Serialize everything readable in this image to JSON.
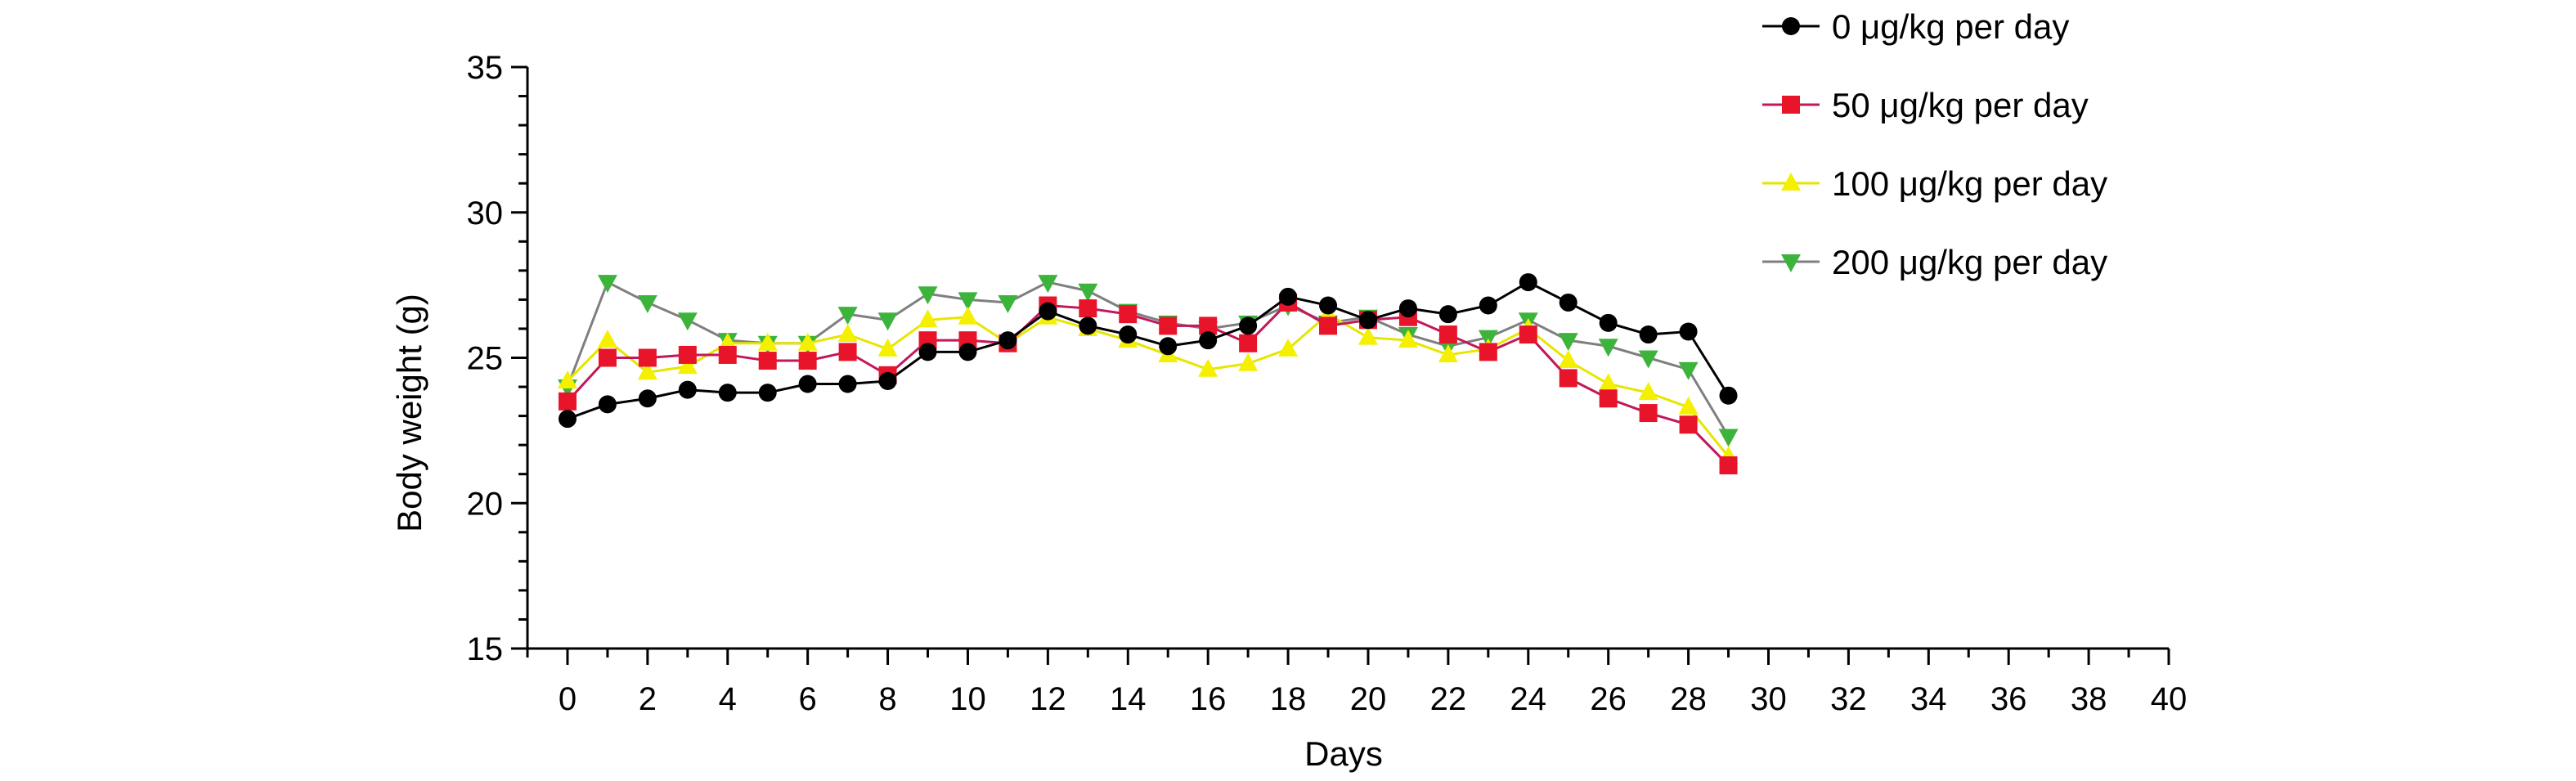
{
  "chart_data": {
    "type": "line",
    "title": "",
    "xlabel": "Days",
    "ylabel": "Body weight (g)",
    "xlim": [
      -1,
      40
    ],
    "ylim": [
      15,
      35
    ],
    "x_ticks": [
      0,
      2,
      4,
      6,
      8,
      10,
      12,
      14,
      16,
      18,
      20,
      22,
      24,
      26,
      28,
      30,
      32,
      34,
      36,
      38,
      40
    ],
    "y_ticks": [
      15,
      20,
      25,
      30,
      35
    ],
    "grid": false,
    "legend_position": "top-right",
    "x": [
      0,
      1,
      2,
      3,
      4,
      5,
      6,
      7,
      8,
      9,
      10,
      11,
      12,
      13,
      14,
      15,
      16,
      17,
      18,
      19,
      20,
      21,
      22,
      23,
      24,
      25,
      26,
      27,
      28,
      29
    ],
    "series": [
      {
        "name": "0 μg/kg per day",
        "marker": "circle",
        "color": "#000000",
        "line_color": "#000000",
        "values": [
          22.9,
          23.4,
          23.6,
          23.9,
          23.8,
          23.8,
          24.1,
          24.1,
          24.2,
          25.2,
          25.2,
          25.6,
          26.6,
          26.1,
          25.8,
          25.4,
          25.6,
          26.1,
          27.1,
          26.8,
          26.3,
          26.7,
          26.5,
          26.8,
          27.6,
          26.9,
          26.2,
          25.8,
          25.9,
          23.7
        ]
      },
      {
        "name": "50 μg/kg per day",
        "marker": "square",
        "color": "#e8142a",
        "line_color": "#c2185b",
        "values": [
          23.5,
          25.0,
          25.0,
          25.1,
          25.1,
          24.9,
          24.9,
          25.2,
          24.4,
          25.6,
          25.6,
          25.5,
          26.8,
          26.7,
          26.5,
          26.1,
          26.1,
          25.5,
          26.9,
          26.1,
          26.3,
          26.4,
          25.8,
          25.2,
          25.8,
          24.3,
          23.6,
          23.1,
          22.7,
          21.3
        ]
      },
      {
        "name": "100 μg/kg per day",
        "marker": "triangle-up",
        "color": "#f5f000",
        "line_color": "#e6e600",
        "values": [
          24.2,
          25.6,
          24.5,
          24.7,
          25.5,
          25.5,
          25.5,
          25.8,
          25.3,
          26.3,
          26.4,
          25.5,
          26.4,
          26.0,
          25.6,
          25.1,
          24.6,
          24.8,
          25.3,
          26.5,
          25.7,
          25.6,
          25.1,
          25.3,
          26.0,
          24.9,
          24.1,
          23.8,
          23.3,
          21.6
        ]
      },
      {
        "name": "200 μg/kg per day",
        "marker": "triangle-down",
        "color": "#3cb43c",
        "line_color": "#7f7f7f",
        "values": [
          24.0,
          27.6,
          26.9,
          26.3,
          25.6,
          25.5,
          25.5,
          26.5,
          26.3,
          27.2,
          27.0,
          26.9,
          27.6,
          27.3,
          26.6,
          26.2,
          26.0,
          26.2,
          26.8,
          26.2,
          26.4,
          25.8,
          25.4,
          25.7,
          26.3,
          25.6,
          25.4,
          25.0,
          24.6,
          22.3
        ]
      }
    ]
  }
}
